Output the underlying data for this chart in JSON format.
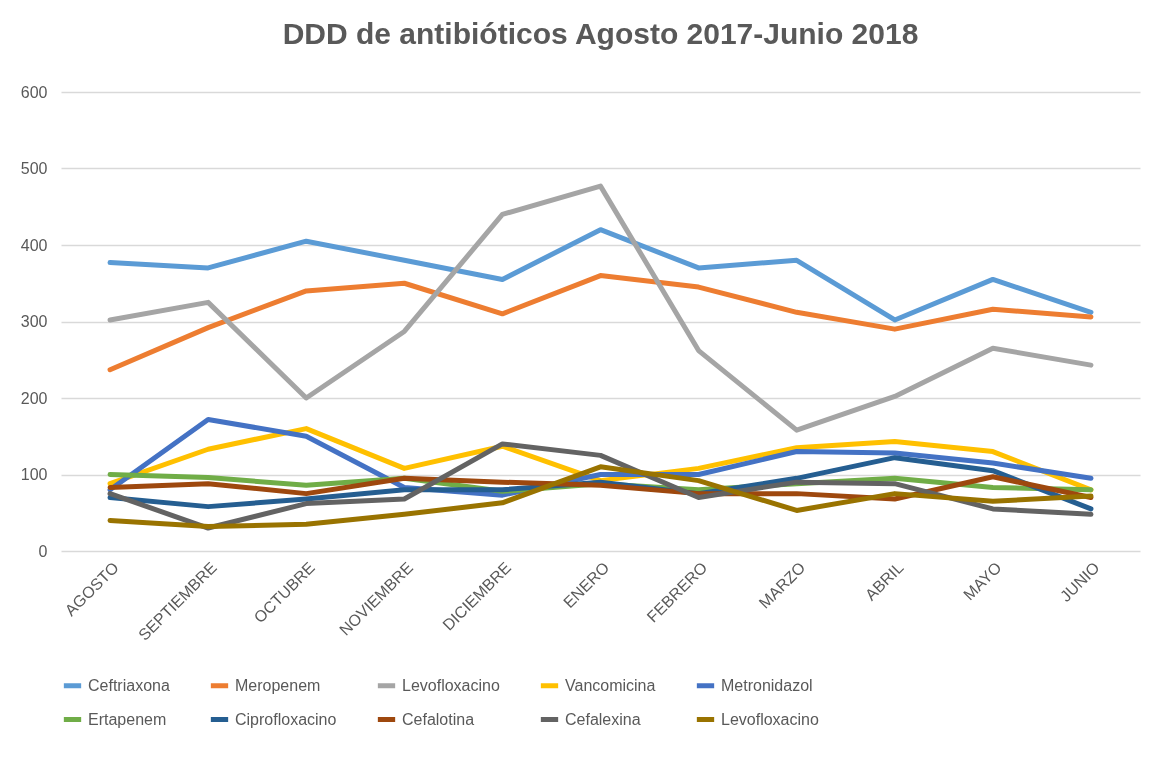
{
  "chart_data": {
    "type": "line",
    "title": "DDD de antibióticos Agosto 2017-Junio 2018",
    "categories": [
      "AGOSTO",
      "SEPTIEMBRE",
      "OCTUBRE",
      "NOVIEMBRE",
      "DICIEMBRE",
      "ENERO",
      "FEBRERO",
      "MARZO",
      "ABRIL",
      "MAYO",
      "JUNIO"
    ],
    "series": [
      {
        "name": "Ceftriaxona",
        "color": "#5b9bd5",
        "values": [
          377,
          370,
          405,
          380,
          355,
          420,
          370,
          380,
          302,
          355,
          312
        ]
      },
      {
        "name": "Meropenem",
        "color": "#ed7d31",
        "values": [
          237,
          292,
          340,
          350,
          310,
          360,
          345,
          312,
          290,
          316,
          306
        ]
      },
      {
        "name": "Levofloxacino",
        "color": "#a5a5a5",
        "values": [
          302,
          325,
          200,
          287,
          440,
          477,
          262,
          158,
          202,
          265,
          243
        ]
      },
      {
        "name": "Vancomicina",
        "color": "#ffc000",
        "values": [
          88,
          133,
          160,
          108,
          137,
          92,
          108,
          135,
          143,
          130,
          80
        ]
      },
      {
        "name": "Metronidazol",
        "color": "#4472c4",
        "values": [
          80,
          172,
          150,
          83,
          73,
          100,
          100,
          130,
          128,
          115,
          95
        ]
      },
      {
        "name": "Ertapenem",
        "color": "#70ad47",
        "values": [
          100,
          96,
          86,
          95,
          78,
          88,
          80,
          88,
          95,
          83,
          80
        ]
      },
      {
        "name": "Ciprofloxacino",
        "color": "#255e91",
        "values": [
          70,
          58,
          68,
          80,
          80,
          90,
          75,
          95,
          122,
          105,
          55
        ]
      },
      {
        "name": "Cefalotina",
        "color": "#9e480e",
        "values": [
          83,
          88,
          75,
          95,
          90,
          86,
          75,
          75,
          68,
          97,
          70
        ]
      },
      {
        "name": "Cefalexina",
        "color": "#636363",
        "values": [
          75,
          30,
          62,
          68,
          140,
          125,
          70,
          90,
          88,
          55,
          48
        ]
      },
      {
        "name": "Levofloxacino",
        "color": "#997300",
        "values": [
          40,
          32,
          35,
          48,
          63,
          110,
          92,
          53,
          75,
          65,
          72
        ]
      }
    ],
    "ylim": [
      0,
      600
    ],
    "yticks": [
      0,
      100,
      200,
      300,
      400,
      500,
      600
    ],
    "grid": "y",
    "legend": "bottom",
    "marker": "none",
    "line_style": "solid"
  }
}
